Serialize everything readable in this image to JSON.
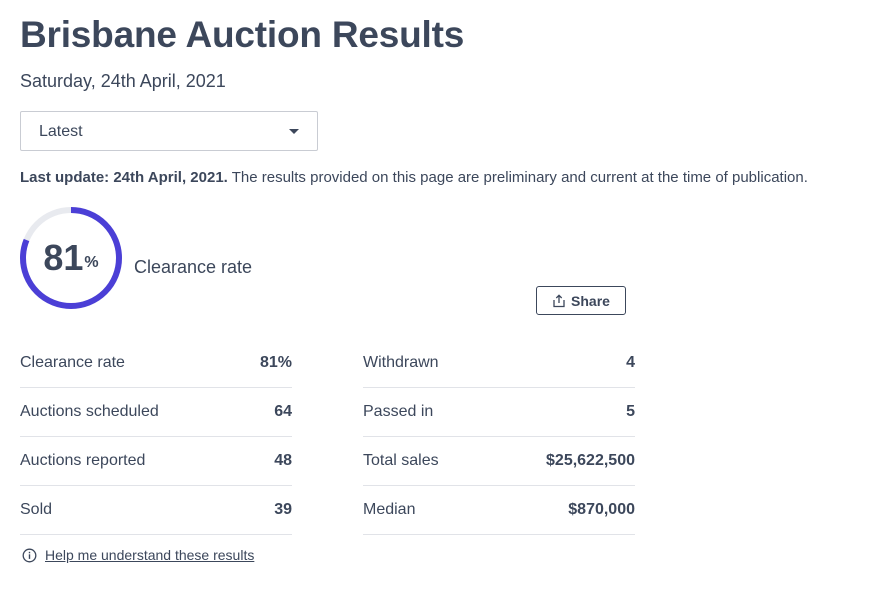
{
  "page": {
    "title": "Brisbane Auction Results",
    "date": "Saturday, 24th April, 2021"
  },
  "filter": {
    "selected": "Latest"
  },
  "update": {
    "label": "Last update: 24th April, 2021.",
    "note": " The results provided on this page are preliminary and current at the time of publication."
  },
  "clearance": {
    "value": "81",
    "unit": "%",
    "label": "Clearance rate",
    "fraction": 0.81,
    "ring_color": "#4b3fd6",
    "track_color": "#e8eaef"
  },
  "share": {
    "label": "Share"
  },
  "stats_left": [
    {
      "label": "Clearance rate",
      "value": "81%"
    },
    {
      "label": "Auctions scheduled",
      "value": "64"
    },
    {
      "label": "Auctions reported",
      "value": "48"
    },
    {
      "label": "Sold",
      "value": "39"
    }
  ],
  "stats_right": [
    {
      "label": "Withdrawn",
      "value": "4"
    },
    {
      "label": "Passed in",
      "value": "5"
    },
    {
      "label": "Total sales",
      "value": "$25,622,500"
    },
    {
      "label": "Median",
      "value": "$870,000"
    }
  ],
  "help": {
    "label": "Help me understand these results",
    "icon": "info-icon"
  }
}
